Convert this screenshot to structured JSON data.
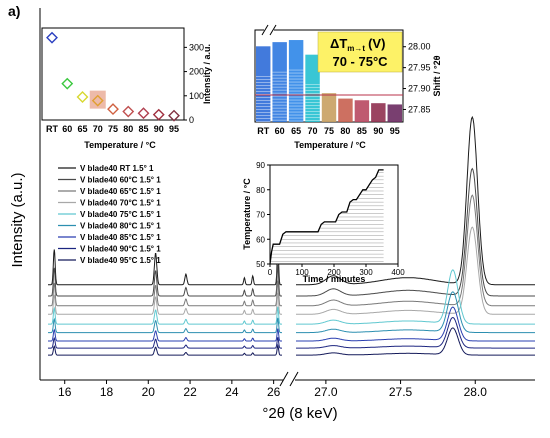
{
  "chart_data": {
    "type": "line",
    "panel_label": "a)",
    "main": {
      "xlabel": "°2θ (8 keV)",
      "ylabel": "Intensity (a.u.)",
      "x_break": [
        26.4,
        26.8
      ],
      "left_segment": {
        "xlim": [
          15.2,
          26.4
        ],
        "ticks": [
          "16",
          "18",
          "20",
          "22",
          "24",
          "26"
        ]
      },
      "right_segment": {
        "xlim": [
          26.8,
          28.4
        ],
        "ticks": [
          "27.0",
          "27.5",
          "28.0"
        ]
      },
      "legend_placement": "left",
      "series": [
        {
          "name": "V blade40 RT 1.5° 1",
          "color": "#1a1a1a",
          "offset": 0.62,
          "peak_28": 0.5,
          "scale": 1.0
        },
        {
          "name": "V blade40 60°C 1.5° 1",
          "color": "#4a4a4a",
          "offset": 0.54,
          "peak_28": 0.38,
          "scale": 0.8
        },
        {
          "name": "V blade40 65°C 1.5° 1",
          "color": "#7a7a7a",
          "offset": 0.47,
          "peak_28": 0.33,
          "scale": 0.65
        },
        {
          "name": "V blade40 70°C 1.5° 1",
          "color": "#a8a8a8",
          "offset": 0.41,
          "peak_28": 0.26,
          "scale": 0.55
        },
        {
          "name": "V blade40 75°C 1.5° 1",
          "color": "#60c8d0",
          "offset": 0.34,
          "peak_28": 0.16,
          "scale": 0.45
        },
        {
          "name": "V blade40 80°C 1.5° 1",
          "color": "#2c8fb0",
          "offset": 0.28,
          "peak_28": 0.12,
          "scale": 0.38
        },
        {
          "name": "V blade40 85°C 1.5° 1",
          "color": "#2a3fb0",
          "offset": 0.22,
          "peak_28": 0.1,
          "scale": 0.32
        },
        {
          "name": "V blade40 90°C 1.5° 1",
          "color": "#1c2580",
          "offset": 0.17,
          "peak_28": 0.09,
          "scale": 0.28
        },
        {
          "name": "V blade40 95°C 1.5° 1",
          "color": "#141a5a",
          "offset": 0.12,
          "peak_28": 0.08,
          "scale": 0.25
        }
      ]
    },
    "inset_intensity": {
      "type": "scatter",
      "xlabel": "Temperature / °C",
      "ylabel": "Intensity / a.u.",
      "categories": [
        "RT",
        "60",
        "65",
        "70",
        "75",
        "80",
        "85",
        "90",
        "95"
      ],
      "values": [
        340,
        150,
        95,
        80,
        45,
        35,
        28,
        22,
        18
      ],
      "colors": [
        "#2a3fc0",
        "#3cc840",
        "#d8d830",
        "#e0a030",
        "#d06040",
        "#c05050",
        "#b04050",
        "#a03040",
        "#803040"
      ],
      "ylim": [
        0,
        380
      ],
      "yticks": [
        "0",
        "100",
        "200",
        "300"
      ]
    },
    "inset_shift": {
      "type": "bar",
      "xlabel": "Temperature / °C",
      "ylabel": "Shift / °2θ",
      "categories": [
        "RT",
        "60",
        "65",
        "70",
        "75",
        "80",
        "85",
        "90",
        "95"
      ],
      "values": [
        28.001,
        28.011,
        28.016,
        27.981,
        27.889,
        27.876,
        27.872,
        27.865,
        27.862
      ],
      "colors": [
        "#2d6cd8",
        "#2d78e0",
        "#2e86e8",
        "#24c0d0",
        "#c8a060",
        "#c86050",
        "#b84860",
        "#903050",
        "#6a2a60"
      ],
      "ylim": [
        27.82,
        28.04
      ],
      "yticks": [
        "27.85",
        "27.90",
        "27.95",
        "28.00"
      ],
      "annotation_line1": "ΔT",
      "annotation_sub": "m→t",
      "annotation_unit": "(V)",
      "annotation_line2": "70 - 75°C"
    },
    "inset_temperature": {
      "type": "line",
      "xlabel": "Time / minutes",
      "ylabel": "Temperature / °C",
      "xlim": [
        0,
        400
      ],
      "ylim": [
        50,
        90
      ],
      "xticks": [
        "0",
        "100",
        "200",
        "300",
        "400"
      ],
      "yticks": [
        "50",
        "60",
        "70",
        "80",
        "90"
      ],
      "x": [
        0,
        5,
        10,
        30,
        40,
        50,
        150,
        160,
        170,
        205,
        215,
        225,
        240,
        250,
        260,
        270,
        280,
        290,
        300,
        310,
        320,
        330,
        340,
        350,
        355
      ],
      "y": [
        50,
        55,
        58,
        58,
        62,
        63,
        63,
        66,
        67,
        67,
        70,
        71,
        71,
        75,
        76,
        76,
        78,
        80,
        80,
        82,
        84,
        85,
        88,
        88,
        88
      ]
    }
  }
}
